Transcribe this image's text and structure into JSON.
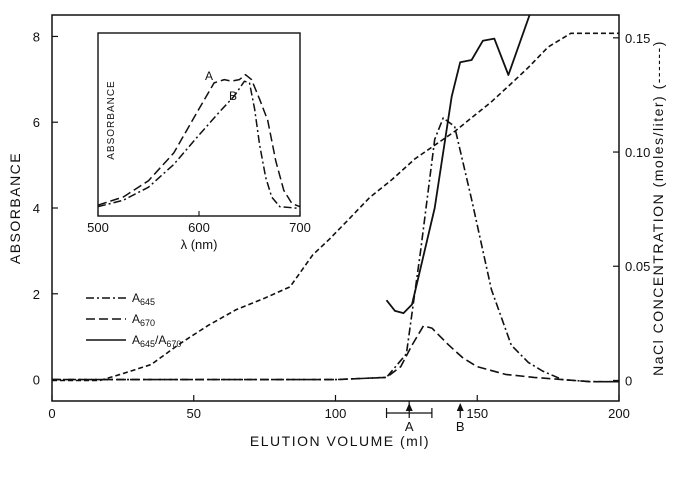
{
  "chart_data": [
    {
      "type": "line",
      "title": "",
      "xlabel": "ELUTION VOLUME (ml)",
      "ylabel": "ABSORBANCE",
      "y2label": "NaCl CONCENTRATION (moles/liter) (------)",
      "xlim": [
        0,
        200
      ],
      "ylim": [
        -0.5,
        8.5
      ],
      "y2lim": [
        -0.009,
        0.16
      ],
      "x_ticks": [
        "0",
        "50",
        "100",
        "150",
        "200"
      ],
      "y_ticks": [
        "0",
        "2",
        "4",
        "6",
        "8"
      ],
      "y2_ticks": [
        "0",
        "0.05",
        "0.10",
        "0.15"
      ],
      "grid": false,
      "legend_position": "left-middle",
      "series": [
        {
          "name": "A645",
          "legend_main": "A",
          "legend_sub": "645",
          "axis": "left",
          "style": "dash-dot",
          "x": [
            0,
            100,
            118,
            125,
            130,
            135,
            138,
            142,
            148,
            155,
            162,
            168,
            173,
            180,
            190,
            200
          ],
          "y": [
            0,
            0,
            0.05,
            0.6,
            3.0,
            5.6,
            6.1,
            5.9,
            4.2,
            2.1,
            0.8,
            0.4,
            0.2,
            0.0,
            -0.05,
            -0.05
          ]
        },
        {
          "name": "A670",
          "legend_main": "A",
          "legend_sub": "670",
          "axis": "left",
          "style": "dashed",
          "x": [
            0,
            100,
            118,
            123,
            127,
            131,
            134,
            137,
            140,
            145,
            150,
            160,
            170,
            180,
            190,
            200
          ],
          "y": [
            0,
            0,
            0.05,
            0.3,
            0.8,
            1.25,
            1.2,
            1.0,
            0.8,
            0.5,
            0.3,
            0.12,
            0.05,
            0.0,
            -0.05,
            -0.05
          ]
        },
        {
          "name": "A645/A670",
          "legend_main": "A",
          "legend_sub": "645",
          "legend_main2": "/A",
          "legend_sub2": "670",
          "axis": "left",
          "style": "solid",
          "x": [
            118,
            121,
            124,
            127,
            135,
            141,
            144,
            148,
            152,
            156,
            161,
            169
          ],
          "y": [
            1.85,
            1.6,
            1.55,
            1.75,
            4.0,
            6.6,
            7.4,
            7.45,
            7.9,
            7.95,
            7.1,
            8.6
          ]
        },
        {
          "name": "NaCl",
          "axis": "right",
          "style": "short-dash",
          "x": [
            0,
            17,
            25,
            35,
            45,
            55,
            65,
            75,
            84,
            92,
            98,
            105,
            112,
            120,
            128,
            135,
            142,
            148,
            155,
            162,
            168,
            175,
            183,
            190,
            200
          ],
          "y": [
            0,
            0,
            0.003,
            0.007,
            0.016,
            0.024,
            0.031,
            0.036,
            0.041,
            0.055,
            0.062,
            0.071,
            0.08,
            0.088,
            0.097,
            0.103,
            0.109,
            0.115,
            0.122,
            0.13,
            0.137,
            0.146,
            0.152,
            0.152,
            0.152
          ]
        }
      ],
      "annotations": [
        {
          "text": "A",
          "x": 126,
          "kind": "arrow"
        },
        {
          "text": "B",
          "x": 144,
          "kind": "arrow"
        },
        {
          "text": "I",
          "x_from": 118,
          "x_to": 134,
          "kind": "bracket"
        }
      ]
    },
    {
      "type": "line",
      "title": "",
      "inset": true,
      "xlabel": "λ (nm)",
      "ylabel": "ABSORBANCE",
      "xlim": [
        500,
        700
      ],
      "ylim": [
        0,
        1
      ],
      "x_ticks": [
        "500",
        "600",
        "700"
      ],
      "grid": false,
      "series": [
        {
          "name": "A",
          "style": "dashed",
          "x": [
            500,
            525,
            550,
            575,
            600,
            615,
            625,
            632,
            640,
            646,
            652,
            660,
            668,
            676,
            684,
            692,
            700
          ],
          "y": [
            0.03,
            0.08,
            0.18,
            0.35,
            0.62,
            0.78,
            0.8,
            0.79,
            0.8,
            0.83,
            0.8,
            0.68,
            0.55,
            0.3,
            0.12,
            0.04,
            0.02
          ]
        },
        {
          "name": "B",
          "style": "dash-dot",
          "x": [
            500,
            525,
            550,
            575,
            600,
            620,
            635,
            645,
            650,
            655,
            660,
            666,
            672,
            680,
            700
          ],
          "y": [
            0.02,
            0.06,
            0.14,
            0.28,
            0.46,
            0.6,
            0.7,
            0.79,
            0.78,
            0.62,
            0.4,
            0.2,
            0.08,
            0.02,
            0.01
          ]
        }
      ]
    }
  ]
}
